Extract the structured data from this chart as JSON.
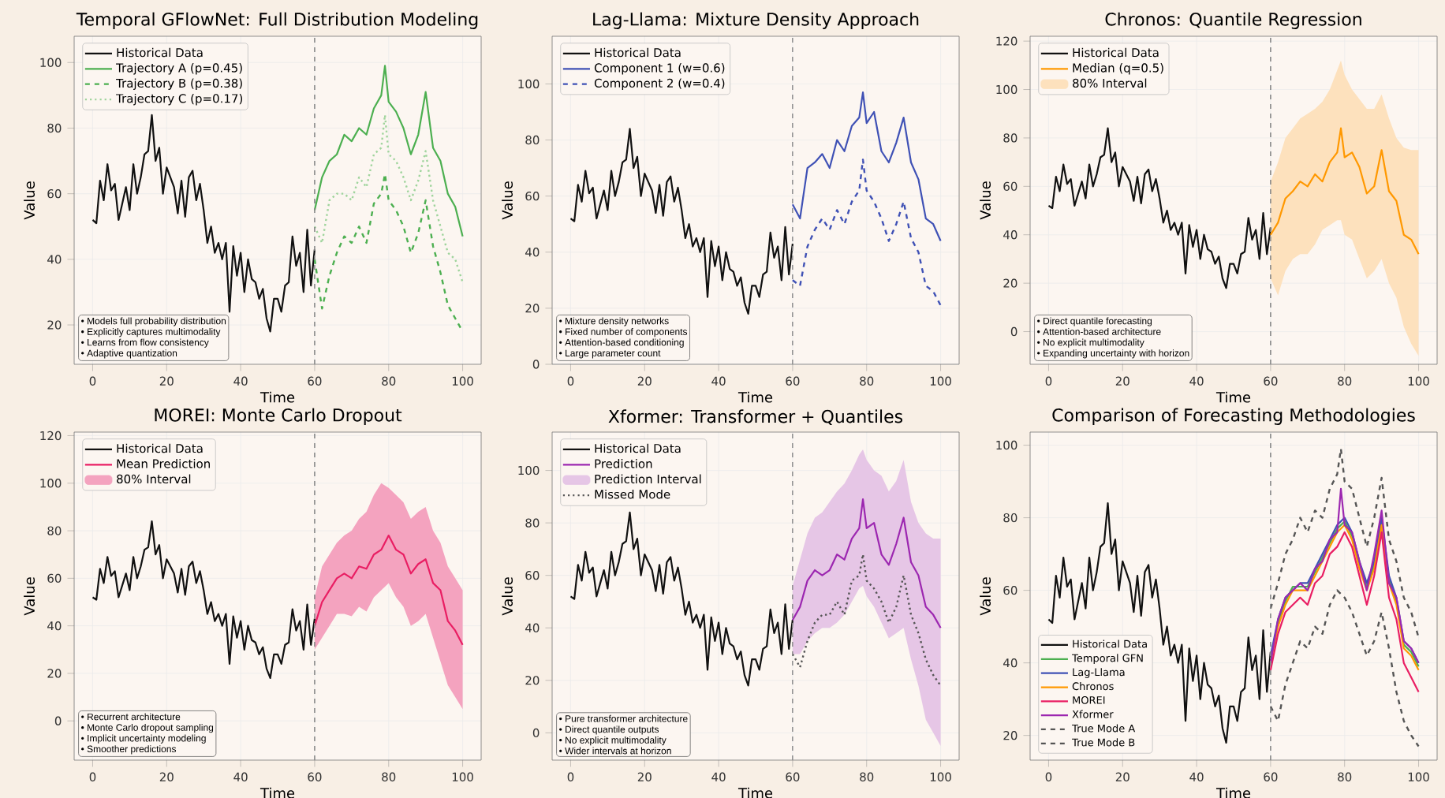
{
  "chart_data": [
    {
      "type": "line",
      "title": "Temporal GFlowNet: Full Distribution Modeling",
      "xlabel": "Time",
      "ylabel": "Value",
      "xlim": [
        -5,
        105
      ],
      "ylim": [
        8,
        108
      ],
      "xticks": [
        0,
        20,
        40,
        60,
        80,
        100
      ],
      "yticks": [
        20,
        40,
        60,
        80,
        100
      ],
      "grid": true,
      "legend": "top left",
      "ref_lines": [
        {
          "axis": "x",
          "value": 60,
          "color": "#888888",
          "line_style": "dashed"
        }
      ],
      "annotations": [
        "• Models full probability distribution",
        "• Explicitly captures multimodality",
        "• Learns from flow consistency",
        "• Adaptive quantization"
      ],
      "series": [
        {
          "name": "Historical Data",
          "color": "#111111",
          "x": [
            0,
            1,
            2,
            3,
            4,
            5,
            6,
            7,
            8,
            9,
            10,
            11,
            12,
            13,
            14,
            15,
            16,
            17,
            18,
            19,
            20,
            21,
            22,
            23,
            24,
            25,
            26,
            27,
            28,
            29,
            30,
            31,
            32,
            33,
            34,
            35,
            36,
            37,
            38,
            39,
            40,
            41,
            42,
            43,
            44,
            45,
            46,
            47,
            48,
            49,
            50,
            51,
            52,
            53,
            54,
            55,
            56,
            57,
            58,
            59,
            60
          ],
          "values": [
            52,
            51,
            64,
            58,
            69,
            61,
            63,
            52,
            57,
            62,
            55,
            69,
            60,
            65,
            72,
            73,
            84,
            70,
            74,
            60,
            68,
            65,
            62,
            54,
            64,
            53,
            65,
            67,
            58,
            63,
            55,
            45,
            50,
            42,
            45,
            40,
            45,
            24,
            44,
            35,
            42,
            30,
            40,
            34,
            33,
            28,
            31,
            22,
            18,
            28,
            28,
            24,
            32,
            33,
            47,
            38,
            42,
            30,
            49,
            32,
            43
          ]
        },
        {
          "name": "Trajectory A (p=0.45)",
          "color": "#4caf50",
          "x": [
            60,
            62,
            64,
            66,
            68,
            70,
            72,
            74,
            76,
            78,
            79,
            80,
            82,
            84,
            86,
            88,
            90,
            92,
            94,
            96,
            98,
            100
          ],
          "values": [
            55,
            65,
            70,
            72,
            78,
            76,
            80,
            78,
            86,
            90,
            99,
            88,
            85,
            80,
            72,
            78,
            91,
            74,
            70,
            60,
            56,
            47
          ]
        },
        {
          "name": "Trajectory B (p=0.38)",
          "color": "#4caf50",
          "line_style": "dashed",
          "x": [
            60,
            62,
            64,
            66,
            68,
            70,
            72,
            74,
            76,
            78,
            79,
            80,
            82,
            84,
            86,
            88,
            90,
            92,
            94,
            96,
            98,
            100
          ],
          "values": [
            40,
            25,
            35,
            42,
            47,
            45,
            50,
            45,
            57,
            60,
            66,
            58,
            55,
            50,
            42,
            48,
            58,
            44,
            36,
            26,
            22,
            18
          ]
        },
        {
          "name": "Trajectory C (p=0.17)",
          "color": "#9fd49c",
          "line_style": "dotted",
          "x": [
            60,
            62,
            64,
            66,
            68,
            70,
            72,
            74,
            76,
            78,
            79,
            80,
            82,
            84,
            86,
            88,
            90,
            92,
            94,
            96,
            98,
            100
          ],
          "values": [
            50,
            45,
            58,
            60,
            60,
            58,
            65,
            62,
            72,
            74,
            84,
            72,
            70,
            65,
            58,
            64,
            73,
            58,
            50,
            42,
            40,
            33
          ]
        }
      ]
    },
    {
      "type": "line",
      "title": "Lag-Llama: Mixture Density Approach",
      "xlabel": "Time",
      "ylabel": "Value",
      "xlim": [
        -5,
        105
      ],
      "ylim": [
        0,
        117
      ],
      "xticks": [
        0,
        20,
        40,
        60,
        80,
        100
      ],
      "yticks": [
        0,
        20,
        40,
        60,
        80,
        100
      ],
      "grid": true,
      "legend": "top left",
      "ref_lines": [
        {
          "axis": "x",
          "value": 60,
          "color": "#888888",
          "line_style": "dashed"
        }
      ],
      "annotations": [
        "• Mixture density networks",
        "• Fixed number of components",
        "• Attention-based conditioning",
        "• Large parameter count"
      ],
      "series": [
        {
          "name": "Historical Data",
          "color": "#111111",
          "x": [
            0,
            1,
            2,
            3,
            4,
            5,
            6,
            7,
            8,
            9,
            10,
            11,
            12,
            13,
            14,
            15,
            16,
            17,
            18,
            19,
            20,
            21,
            22,
            23,
            24,
            25,
            26,
            27,
            28,
            29,
            30,
            31,
            32,
            33,
            34,
            35,
            36,
            37,
            38,
            39,
            40,
            41,
            42,
            43,
            44,
            45,
            46,
            47,
            48,
            49,
            50,
            51,
            52,
            53,
            54,
            55,
            56,
            57,
            58,
            59,
            60
          ],
          "values": [
            52,
            51,
            64,
            58,
            69,
            61,
            63,
            52,
            57,
            62,
            55,
            69,
            60,
            65,
            72,
            73,
            84,
            70,
            74,
            60,
            68,
            65,
            62,
            54,
            64,
            53,
            65,
            67,
            58,
            63,
            55,
            45,
            50,
            42,
            45,
            40,
            45,
            24,
            44,
            35,
            42,
            30,
            40,
            34,
            33,
            28,
            31,
            22,
            18,
            28,
            28,
            24,
            32,
            33,
            47,
            38,
            42,
            30,
            49,
            32,
            43
          ]
        },
        {
          "name": "Component 1 (w=0.6)",
          "color": "#3f51b5",
          "x": [
            60,
            62,
            64,
            66,
            68,
            70,
            72,
            74,
            76,
            78,
            79,
            80,
            82,
            84,
            86,
            88,
            90,
            92,
            94,
            96,
            98,
            100
          ],
          "values": [
            57,
            52,
            70,
            72,
            75,
            70,
            80,
            76,
            85,
            88,
            97,
            86,
            90,
            76,
            72,
            79,
            88,
            72,
            66,
            52,
            50,
            44
          ]
        },
        {
          "name": "Component 2 (w=0.4)",
          "color": "#3f51b5",
          "line_style": "dashed",
          "x": [
            60,
            62,
            64,
            66,
            68,
            70,
            72,
            74,
            76,
            78,
            79,
            80,
            82,
            84,
            86,
            88,
            90,
            92,
            94,
            96,
            98,
            100
          ],
          "values": [
            30,
            28,
            42,
            48,
            52,
            48,
            55,
            50,
            58,
            62,
            73,
            62,
            58,
            52,
            44,
            50,
            58,
            45,
            40,
            28,
            26,
            21
          ]
        }
      ]
    },
    {
      "type": "line",
      "title": "Chronos: Quantile Regression",
      "xlabel": "Time",
      "ylabel": "Value",
      "xlim": [
        -5,
        105
      ],
      "ylim": [
        -13.5,
        122
      ],
      "xticks": [
        0,
        20,
        40,
        60,
        80,
        100
      ],
      "yticks": [
        0,
        20,
        40,
        60,
        80,
        100,
        120
      ],
      "grid": true,
      "legend": "top left",
      "ref_lines": [
        {
          "axis": "x",
          "value": 60,
          "color": "#888888",
          "line_style": "dashed"
        }
      ],
      "annotations": [
        "• Direct quantile forecasting",
        "• Attention-based architecture",
        "• No explicit multimodality",
        "• Expanding uncertainty with horizon"
      ],
      "series": [
        {
          "name": "Historical Data",
          "color": "#111111",
          "x": [
            0,
            1,
            2,
            3,
            4,
            5,
            6,
            7,
            8,
            9,
            10,
            11,
            12,
            13,
            14,
            15,
            16,
            17,
            18,
            19,
            20,
            21,
            22,
            23,
            24,
            25,
            26,
            27,
            28,
            29,
            30,
            31,
            32,
            33,
            34,
            35,
            36,
            37,
            38,
            39,
            40,
            41,
            42,
            43,
            44,
            45,
            46,
            47,
            48,
            49,
            50,
            51,
            52,
            53,
            54,
            55,
            56,
            57,
            58,
            59,
            60
          ],
          "values": [
            52,
            51,
            64,
            58,
            69,
            61,
            63,
            52,
            57,
            62,
            55,
            69,
            60,
            65,
            72,
            73,
            84,
            70,
            74,
            60,
            68,
            65,
            62,
            54,
            64,
            53,
            65,
            67,
            58,
            63,
            55,
            45,
            50,
            42,
            45,
            40,
            45,
            24,
            44,
            35,
            42,
            30,
            40,
            34,
            33,
            28,
            31,
            22,
            18,
            28,
            28,
            24,
            32,
            33,
            47,
            38,
            42,
            30,
            49,
            32,
            43
          ]
        },
        {
          "name": "Median (q=0.5)",
          "color": "#ff9800",
          "x": [
            60,
            62,
            64,
            66,
            68,
            70,
            72,
            74,
            76,
            78,
            79,
            80,
            82,
            84,
            86,
            88,
            90,
            92,
            94,
            96,
            98,
            100
          ],
          "values": [
            40,
            45,
            55,
            58,
            62,
            60,
            65,
            62,
            70,
            74,
            84,
            72,
            74,
            68,
            57,
            60,
            75,
            58,
            54,
            40,
            38,
            32
          ],
          "lower": [
            22,
            15,
            25,
            30,
            32,
            32,
            36,
            42,
            44,
            46,
            46,
            40,
            38,
            30,
            22,
            25,
            30,
            20,
            14,
            2,
            -5,
            -10
          ],
          "upper": [
            62,
            70,
            80,
            84,
            88,
            90,
            92,
            95,
            100,
            108,
            112,
            106,
            100,
            96,
            92,
            92,
            98,
            88,
            80,
            76,
            75,
            75
          ]
        },
        {
          "name": "80% Interval",
          "type": "area",
          "color": "#fde1bd"
        }
      ]
    },
    {
      "type": "line",
      "title": "MOREI: Monte Carlo Dropout",
      "xlabel": "Time",
      "ylabel": "Value",
      "xlim": [
        -5,
        105
      ],
      "ylim": [
        -16.5,
        121.5
      ],
      "xticks": [
        0,
        20,
        40,
        60,
        80,
        100
      ],
      "yticks": [
        0,
        20,
        40,
        60,
        80,
        100,
        120
      ],
      "grid": true,
      "legend": "top left",
      "ref_lines": [
        {
          "axis": "x",
          "value": 60,
          "color": "#888888",
          "line_style": "dashed"
        }
      ],
      "annotations": [
        "• Recurrent architecture",
        "• Monte Carlo dropout sampling",
        "• Implicit uncertainty modeling",
        "• Smoother predictions"
      ],
      "series": [
        {
          "name": "Historical Data",
          "color": "#111111",
          "x": [
            0,
            1,
            2,
            3,
            4,
            5,
            6,
            7,
            8,
            9,
            10,
            11,
            12,
            13,
            14,
            15,
            16,
            17,
            18,
            19,
            20,
            21,
            22,
            23,
            24,
            25,
            26,
            27,
            28,
            29,
            30,
            31,
            32,
            33,
            34,
            35,
            36,
            37,
            38,
            39,
            40,
            41,
            42,
            43,
            44,
            45,
            46,
            47,
            48,
            49,
            50,
            51,
            52,
            53,
            54,
            55,
            56,
            57,
            58,
            59,
            60
          ],
          "values": [
            52,
            51,
            64,
            58,
            69,
            61,
            63,
            52,
            57,
            62,
            55,
            69,
            60,
            65,
            72,
            73,
            84,
            70,
            74,
            60,
            68,
            65,
            62,
            54,
            64,
            53,
            65,
            67,
            58,
            63,
            55,
            45,
            50,
            42,
            45,
            40,
            45,
            24,
            44,
            35,
            42,
            30,
            40,
            34,
            33,
            28,
            31,
            22,
            18,
            28,
            28,
            24,
            32,
            33,
            47,
            38,
            42,
            30,
            49,
            32,
            43
          ]
        },
        {
          "name": "Mean Prediction",
          "color": "#e91e63",
          "x": [
            60,
            62,
            64,
            66,
            68,
            70,
            72,
            74,
            76,
            78,
            80,
            82,
            84,
            86,
            88,
            90,
            92,
            94,
            96,
            98,
            100
          ],
          "values": [
            40,
            50,
            55,
            60,
            62,
            60,
            65,
            64,
            70,
            72,
            78,
            72,
            70,
            62,
            66,
            68,
            58,
            55,
            42,
            38,
            32
          ],
          "lower": [
            30,
            35,
            40,
            45,
            45,
            44,
            48,
            46,
            52,
            55,
            58,
            52,
            48,
            40,
            42,
            45,
            35,
            25,
            15,
            10,
            5
          ],
          "upper": [
            52,
            65,
            70,
            75,
            78,
            80,
            85,
            88,
            95,
            100,
            98,
            95,
            92,
            85,
            88,
            90,
            80,
            75,
            65,
            60,
            55
          ]
        },
        {
          "name": "80% Interval",
          "type": "area",
          "color": "#f4a3bf"
        }
      ]
    },
    {
      "type": "line",
      "title": "Xformer: Transformer + Quantiles",
      "xlabel": "Time",
      "ylabel": "Value",
      "xlim": [
        -5,
        105
      ],
      "ylim": [
        -10.4,
        114.6
      ],
      "xticks": [
        0,
        20,
        40,
        60,
        80,
        100
      ],
      "yticks": [
        0,
        20,
        40,
        60,
        80,
        100
      ],
      "grid": true,
      "legend": "top left",
      "ref_lines": [
        {
          "axis": "x",
          "value": 60,
          "color": "#888888",
          "line_style": "dashed"
        }
      ],
      "annotations": [
        "• Pure transformer architecture",
        "• Direct quantile outputs",
        "• No explicit multimodality",
        "• Wider intervals at horizon"
      ],
      "series": [
        {
          "name": "Historical Data",
          "color": "#111111",
          "x": [
            0,
            1,
            2,
            3,
            4,
            5,
            6,
            7,
            8,
            9,
            10,
            11,
            12,
            13,
            14,
            15,
            16,
            17,
            18,
            19,
            20,
            21,
            22,
            23,
            24,
            25,
            26,
            27,
            28,
            29,
            30,
            31,
            32,
            33,
            34,
            35,
            36,
            37,
            38,
            39,
            40,
            41,
            42,
            43,
            44,
            45,
            46,
            47,
            48,
            49,
            50,
            51,
            52,
            53,
            54,
            55,
            56,
            57,
            58,
            59,
            60
          ],
          "values": [
            52,
            51,
            64,
            58,
            69,
            61,
            63,
            52,
            57,
            62,
            55,
            69,
            60,
            65,
            72,
            73,
            84,
            70,
            74,
            60,
            68,
            65,
            62,
            54,
            64,
            53,
            65,
            67,
            58,
            63,
            55,
            45,
            50,
            42,
            45,
            40,
            45,
            24,
            44,
            35,
            42,
            30,
            40,
            34,
            33,
            28,
            31,
            22,
            18,
            28,
            28,
            24,
            32,
            33,
            47,
            38,
            42,
            30,
            49,
            32,
            43
          ]
        },
        {
          "name": "Prediction",
          "color": "#9c27b0",
          "x": [
            60,
            62,
            64,
            66,
            68,
            70,
            72,
            74,
            76,
            78,
            79,
            80,
            82,
            84,
            86,
            88,
            90,
            92,
            94,
            96,
            98,
            100
          ],
          "values": [
            43,
            48,
            58,
            62,
            60,
            62,
            68,
            66,
            74,
            78,
            89,
            78,
            80,
            68,
            64,
            72,
            82,
            65,
            60,
            48,
            45,
            40
          ],
          "lower": [
            30,
            30,
            35,
            38,
            40,
            40,
            42,
            45,
            50,
            55,
            56,
            52,
            48,
            42,
            36,
            38,
            40,
            28,
            18,
            5,
            0,
            -5
          ],
          "upper": [
            56,
            66,
            76,
            82,
            84,
            88,
            92,
            95,
            100,
            106,
            108,
            104,
            100,
            98,
            92,
            96,
            104,
            88,
            80,
            76,
            74,
            74
          ]
        },
        {
          "name": "Prediction Interval",
          "type": "area",
          "color": "#e6c6e6"
        },
        {
          "name": "Missed Mode",
          "color": "#555555",
          "line_style": "dotted",
          "x": [
            60,
            62,
            64,
            66,
            68,
            70,
            72,
            74,
            76,
            78,
            79,
            80,
            82,
            84,
            86,
            88,
            90,
            92,
            94,
            96,
            98,
            100
          ],
          "values": [
            30,
            25,
            35,
            42,
            45,
            45,
            50,
            45,
            58,
            60,
            68,
            58,
            55,
            50,
            42,
            48,
            60,
            45,
            38,
            28,
            22,
            18
          ]
        }
      ]
    },
    {
      "type": "line",
      "title": "Comparison of Forecasting Methodologies",
      "xlabel": "Time",
      "ylabel": "Value",
      "xlim": [
        -5,
        105
      ],
      "ylim": [
        13.2,
        103.6
      ],
      "xticks": [
        0,
        20,
        40,
        60,
        80,
        100
      ],
      "yticks": [
        20,
        40,
        60,
        80,
        100
      ],
      "grid": true,
      "legend": "bottom left",
      "ref_lines": [
        {
          "axis": "x",
          "value": 60,
          "color": "#888888",
          "line_style": "dashed"
        }
      ],
      "series": [
        {
          "name": "Historical Data",
          "color": "#111111",
          "x": [
            0,
            1,
            2,
            3,
            4,
            5,
            6,
            7,
            8,
            9,
            10,
            11,
            12,
            13,
            14,
            15,
            16,
            17,
            18,
            19,
            20,
            21,
            22,
            23,
            24,
            25,
            26,
            27,
            28,
            29,
            30,
            31,
            32,
            33,
            34,
            35,
            36,
            37,
            38,
            39,
            40,
            41,
            42,
            43,
            44,
            45,
            46,
            47,
            48,
            49,
            50,
            51,
            52,
            53,
            54,
            55,
            56,
            57,
            58,
            59,
            60
          ],
          "values": [
            52,
            51,
            64,
            58,
            69,
            61,
            63,
            52,
            57,
            62,
            55,
            69,
            60,
            65,
            72,
            73,
            84,
            70,
            74,
            60,
            68,
            65,
            62,
            54,
            64,
            53,
            65,
            67,
            58,
            63,
            55,
            45,
            50,
            42,
            45,
            40,
            45,
            24,
            44,
            35,
            42,
            30,
            40,
            34,
            33,
            28,
            31,
            22,
            18,
            28,
            28,
            24,
            32,
            33,
            47,
            38,
            42,
            30,
            49,
            32,
            43
          ]
        },
        {
          "name": "Temporal GFN",
          "color": "#4caf50",
          "x": [
            60,
            62,
            64,
            66,
            68,
            70,
            72,
            74,
            76,
            78,
            80,
            82,
            84,
            86,
            88,
            90,
            92,
            94,
            96,
            98,
            100
          ],
          "values": [
            41,
            51,
            57,
            61,
            61,
            61,
            65,
            69,
            73,
            77,
            79,
            75,
            67,
            61,
            67,
            79,
            63,
            57,
            45,
            43,
            39
          ]
        },
        {
          "name": "Lag-Llama",
          "color": "#3f51b5",
          "x": [
            60,
            62,
            64,
            66,
            68,
            70,
            72,
            74,
            76,
            78,
            80,
            82,
            84,
            86,
            88,
            90,
            92,
            94,
            96,
            98,
            100
          ],
          "values": [
            42,
            52,
            58,
            60,
            62,
            62,
            66,
            70,
            74,
            78,
            80,
            76,
            68,
            62,
            68,
            80,
            64,
            58,
            46,
            44,
            40
          ]
        },
        {
          "name": "Chronos",
          "color": "#ff9800",
          "x": [
            60,
            62,
            64,
            66,
            68,
            70,
            72,
            74,
            76,
            78,
            80,
            82,
            84,
            86,
            88,
            90,
            92,
            94,
            96,
            98,
            100
          ],
          "values": [
            40,
            50,
            56,
            60,
            60,
            60,
            64,
            68,
            72,
            76,
            78,
            74,
            66,
            60,
            66,
            78,
            62,
            56,
            44,
            42,
            38
          ]
        },
        {
          "name": "MOREI",
          "color": "#e91e63",
          "x": [
            60,
            62,
            64,
            66,
            68,
            70,
            72,
            74,
            76,
            78,
            80,
            82,
            84,
            86,
            88,
            90,
            92,
            94,
            96,
            98,
            100
          ],
          "values": [
            38,
            48,
            54,
            56,
            58,
            56,
            62,
            64,
            70,
            72,
            76,
            72,
            64,
            56,
            64,
            76,
            58,
            52,
            40,
            36,
            32
          ]
        },
        {
          "name": "Xformer",
          "color": "#9c27b0",
          "x": [
            60,
            62,
            64,
            66,
            68,
            70,
            72,
            74,
            76,
            78,
            79,
            80,
            82,
            84,
            86,
            88,
            90,
            92,
            94,
            96,
            98,
            100
          ],
          "values": [
            40,
            52,
            58,
            60,
            62,
            60,
            66,
            68,
            74,
            76,
            88,
            78,
            76,
            68,
            60,
            70,
            82,
            62,
            58,
            46,
            44,
            40
          ]
        },
        {
          "name": "True Mode A",
          "color": "#555555",
          "line_style": "dashed",
          "x": [
            60,
            62,
            64,
            66,
            68,
            70,
            72,
            74,
            76,
            78,
            79,
            80,
            82,
            84,
            86,
            88,
            90,
            92,
            94,
            96,
            98,
            100
          ],
          "values": [
            55,
            62,
            70,
            74,
            80,
            76,
            82,
            80,
            88,
            92,
            99,
            90,
            88,
            80,
            72,
            80,
            91,
            74,
            68,
            58,
            54,
            47
          ]
        },
        {
          "name": "True Mode B",
          "color": "#555555",
          "line_style": "dashed",
          "x": [
            60,
            62,
            64,
            66,
            68,
            70,
            72,
            74,
            76,
            78,
            80,
            82,
            84,
            86,
            88,
            90,
            92,
            94,
            96,
            98,
            100
          ],
          "values": [
            28,
            24,
            34,
            40,
            46,
            44,
            50,
            48,
            56,
            60,
            58,
            54,
            48,
            42,
            46,
            54,
            44,
            32,
            24,
            20,
            17
          ]
        }
      ]
    }
  ]
}
